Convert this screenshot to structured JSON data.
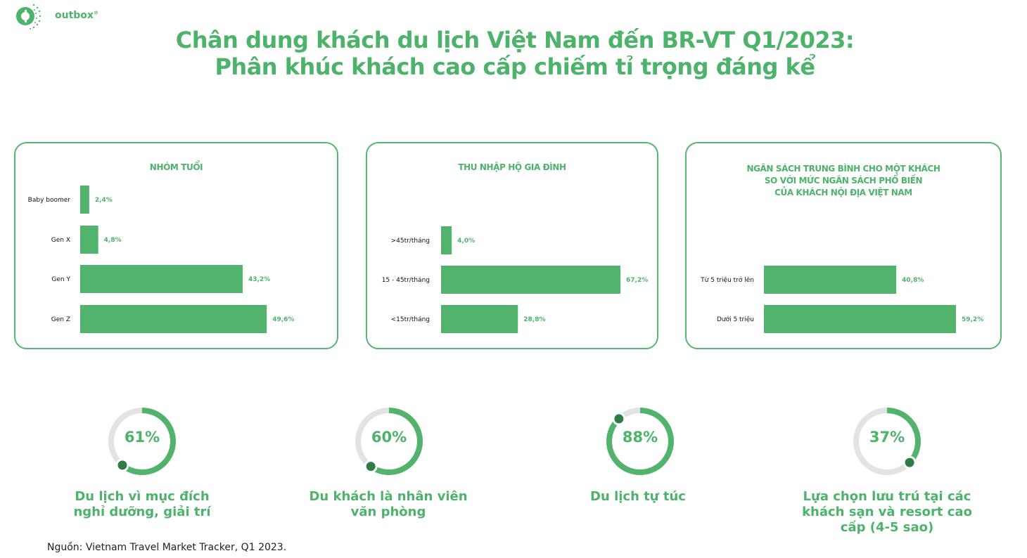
{
  "brand": {
    "name": "outbox",
    "mark": "®",
    "color": "#4db36b"
  },
  "title_line1": "Chân dung khách du lịch Việt Nam đến BR-VT Q1/2023:",
  "title_line2": "Phân khúc khách cao cấp chiếm tỉ trọng đáng kể",
  "colors": {
    "bar": "#52b36d",
    "accent": "#4db36b",
    "track": "#e3e3e3",
    "dot": "#2e7d46"
  },
  "chart_data": [
    {
      "type": "bar",
      "orientation": "horizontal",
      "title": "NHÓM TUỔI",
      "categories": [
        "Baby boomer",
        "Gen X",
        "Gen Y",
        "Gen Z"
      ],
      "values": [
        2.4,
        4.8,
        43.2,
        49.6
      ],
      "labels": [
        "2,4%",
        "4,8%",
        "43,2%",
        "49,6%"
      ],
      "unit": "%"
    },
    {
      "type": "bar",
      "orientation": "horizontal",
      "title": "THU NHẬP HỘ GIA ĐÌNH",
      "categories": [
        ">45tr/tháng",
        "15 - 45tr/tháng",
        "<15tr/tháng"
      ],
      "values": [
        4.0,
        67.2,
        28.8
      ],
      "labels": [
        "4,0%",
        "67,2%",
        "28,8%"
      ],
      "unit": "%"
    },
    {
      "type": "bar",
      "orientation": "horizontal",
      "title": [
        "NGÂN SÁCH TRUNG BÌNH CHO MỘT KHÁCH",
        "SO VỚI MỨC NGÂN SÁCH PHỔ BIẾN",
        "CỦA KHÁCH NỘI ĐỊA VIỆT NAM"
      ],
      "categories": [
        "Từ 5 triệu trở lên",
        "Dưới 5 triệu"
      ],
      "values": [
        40.8,
        59.2
      ],
      "labels": [
        "40,8%",
        "59,2%"
      ],
      "unit": "%"
    }
  ],
  "stats": [
    {
      "value": 61,
      "label": "61%",
      "caption": [
        "Du lịch vì mục đích",
        "nghỉ dưỡng, giải trí"
      ]
    },
    {
      "value": 60,
      "label": "60%",
      "caption": [
        "Du khách là nhân viên",
        "văn phòng"
      ]
    },
    {
      "value": 88,
      "label": "88%",
      "caption": [
        "Du lịch tự túc"
      ]
    },
    {
      "value": 37,
      "label": "37%",
      "caption": [
        "Lựa chọn lưu trú tại các",
        "khách sạn và resort cao",
        "cấp (4-5 sao)"
      ]
    }
  ],
  "source": "Nguồn: Vietnam Travel Market Tracker, Q1 2023."
}
